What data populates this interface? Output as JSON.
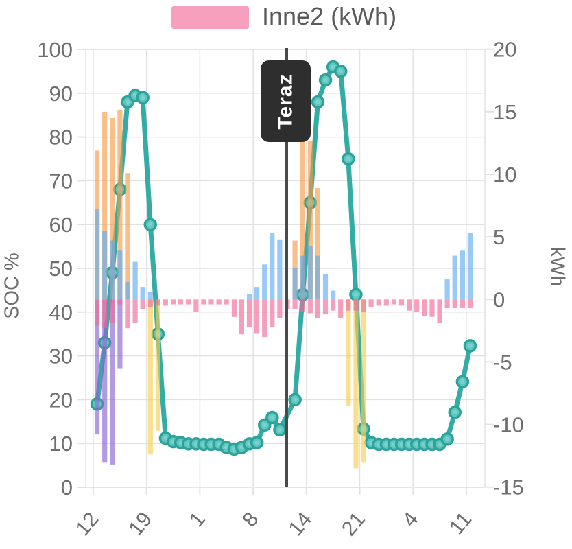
{
  "legend": {
    "series_label": "Inne2 (kWh)",
    "swatch_color": "#f6a0bd"
  },
  "now_marker": {
    "label": "Teraz",
    "line_color": "#4a4a4a",
    "bg_color": "#2e2e2e",
    "text_color": "#ffffff"
  },
  "axes": {
    "left": {
      "title": "SOC %",
      "ticks": [
        100,
        90,
        80,
        70,
        60,
        50,
        40,
        30,
        20,
        10,
        0
      ],
      "range": [
        0,
        100
      ]
    },
    "right": {
      "title": "kWh",
      "ticks": [
        20,
        15,
        10,
        5,
        0,
        -5,
        -10,
        -15
      ],
      "range": [
        -15,
        20
      ]
    },
    "x": {
      "tick_labels": [
        "12",
        "19",
        "1",
        "8",
        "14",
        "21",
        "4",
        "11"
      ],
      "slots": 50,
      "ticks_every": 7,
      "grid": true
    }
  },
  "chart_data": {
    "type": "composite",
    "title": "",
    "x_tick_labels": [
      "12",
      "19",
      "1",
      "8",
      "14",
      "21",
      "4",
      "11"
    ],
    "line": {
      "name": "SOC",
      "unit": "%",
      "axis": "left",
      "color": "#33aca6",
      "marker_fill": "#5fc6c0",
      "marker_stroke": "#2da29b",
      "values": [
        19,
        33,
        49,
        68,
        88,
        89.5,
        89,
        60,
        35,
        11.2,
        10.4,
        10.2,
        9.9,
        9.9,
        9.8,
        9.8,
        9.8,
        9.1,
        8.7,
        9.1,
        9.9,
        10.2,
        14.2,
        15.9,
        13.1,
        null,
        20,
        44,
        65,
        88,
        93,
        96,
        95,
        75,
        44,
        13.3,
        10.2,
        9.8,
        9.8,
        9.8,
        9.8,
        9.8,
        9.8,
        9.8,
        9.8,
        9.8,
        11,
        17.1,
        24.1,
        32.3
      ]
    },
    "bars": [
      {
        "name": "orange-series",
        "unit": "kWh",
        "axis": "right",
        "color": "#f59d49",
        "values": [
          11.9,
          15,
          14.5,
          15.1,
          10.1,
          0,
          0,
          0,
          0,
          0,
          0,
          0,
          0,
          0,
          0,
          0,
          0,
          0,
          0,
          0,
          0,
          0,
          0,
          0,
          0,
          0,
          4.7,
          12.8,
          12.7,
          8.9,
          0,
          0,
          0,
          0,
          0,
          0,
          0,
          0,
          0,
          0,
          0,
          0,
          0,
          0,
          0,
          0,
          0,
          0,
          0,
          0
        ]
      },
      {
        "name": "purple-series",
        "unit": "kWh",
        "axis": "right",
        "color": "#8a66d2",
        "values": [
          -10.8,
          -13,
          -13.2,
          -5.5,
          0,
          0,
          0,
          0,
          0,
          0,
          0,
          0,
          0,
          0,
          0,
          0,
          0,
          0,
          0,
          0,
          0,
          0,
          0,
          0,
          0,
          0,
          0,
          0,
          0,
          0,
          0,
          0,
          0,
          0,
          0,
          0,
          0,
          0,
          0,
          0,
          0,
          0,
          0,
          0,
          0,
          0,
          0,
          0,
          0,
          0
        ]
      },
      {
        "name": "yellow-series",
        "unit": "kWh",
        "axis": "right",
        "color": "#f8cf4f",
        "values": [
          0,
          0,
          0,
          0,
          0,
          0,
          0,
          -12.4,
          -10.5,
          0,
          0,
          0,
          0,
          0,
          0,
          0,
          0,
          0,
          0,
          0,
          0,
          0,
          0,
          0,
          0,
          0,
          0,
          0,
          0,
          0,
          0,
          0,
          0,
          -8.5,
          -13.5,
          -13,
          0,
          0,
          0,
          0,
          0,
          0,
          0,
          0,
          0,
          0,
          0,
          0,
          0,
          0
        ]
      },
      {
        "name": "blue-series",
        "unit": "kWh",
        "axis": "right",
        "color": "#64aef0",
        "values": [
          7.2,
          5.5,
          4.7,
          3.9,
          1.4,
          3,
          1,
          0.6,
          0,
          0,
          0,
          0,
          0,
          0,
          0,
          0,
          0,
          0,
          0,
          0,
          0.4,
          1,
          2.8,
          5.3,
          4.8,
          0,
          2.5,
          3.5,
          4.3,
          3.5,
          2,
          0.7,
          0,
          0,
          0,
          0,
          0,
          0,
          0,
          0,
          0,
          0,
          0,
          0,
          0,
          0,
          1.6,
          3.5,
          3.9,
          5.3
        ]
      },
      {
        "name": "Inne2",
        "unit": "kWh",
        "axis": "right",
        "color": "#f06d9a",
        "values": [
          -2.1,
          -2.3,
          -1.9,
          -0.4,
          -2.3,
          -1.9,
          -0.8,
          -0.6,
          -0.5,
          -0.5,
          -0.4,
          -0.4,
          -0.4,
          -1,
          -0.4,
          -0.4,
          -0.4,
          -0.4,
          -1.4,
          -2.8,
          -2.2,
          -2.7,
          -3,
          -2.2,
          -1.5,
          -0.8,
          -0.8,
          -1,
          -1.1,
          -1.5,
          -1.2,
          -0.9,
          -1.5,
          -0.9,
          -0.9,
          -1,
          -0.6,
          -0.5,
          -0.5,
          -0.4,
          -0.5,
          -0.9,
          -1,
          -1.3,
          -1.4,
          -1.9,
          -0.7,
          -0.7,
          -0.7,
          -0.7
        ]
      }
    ],
    "legend": [
      "Inne2 (kWh)"
    ],
    "annotations": [
      {
        "type": "vline",
        "label": "Teraz"
      }
    ]
  }
}
